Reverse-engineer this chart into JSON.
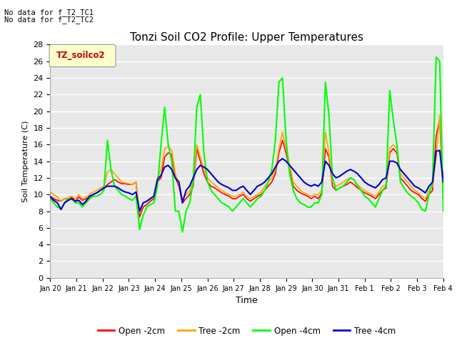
{
  "title": "Tonzi Soil CO2 Profile: Upper Temperatures",
  "xlabel": "Time",
  "ylabel": "Soil Temperature (C)",
  "note1": "No data for f_T2_TC1",
  "note2": "No data for f_T2_TC2",
  "legend_label": "TZ_soilco2",
  "ylim": [
    0,
    28
  ],
  "yticks": [
    0,
    2,
    4,
    6,
    8,
    10,
    12,
    14,
    16,
    18,
    20,
    22,
    24,
    26,
    28
  ],
  "xtick_labels": [
    "Jan 20",
    "Jan 21",
    "Jan 22",
    "Jan 23",
    "Jan 24",
    "Jan 25",
    "Jan 26",
    "Jan 27",
    "Jan 28",
    "Jan 29",
    "Jan 30",
    "Jan 31",
    "Feb 1",
    "Feb 2",
    "Feb 3",
    "Feb 4"
  ],
  "colors": {
    "open_2cm": "#FF0000",
    "tree_2cm": "#FFA500",
    "open_4cm": "#00FF00",
    "tree_4cm": "#0000CC"
  },
  "series_labels": [
    "Open -2cm",
    "Tree -2cm",
    "Open -4cm",
    "Tree -4cm"
  ],
  "open_2cm": [
    9.8,
    9.5,
    9.3,
    9.2,
    9.5,
    9.5,
    9.7,
    9.2,
    9.7,
    9.3,
    9.5,
    9.7,
    10.0,
    10.2,
    10.5,
    10.7,
    11.2,
    11.5,
    11.8,
    11.5,
    11.3,
    11.3,
    11.2,
    11.2,
    11.5,
    7.3,
    8.5,
    8.8,
    9.2,
    9.5,
    11.5,
    12.0,
    14.5,
    15.0,
    14.8,
    12.0,
    11.0,
    9.0,
    9.5,
    10.0,
    11.0,
    15.5,
    14.0,
    12.5,
    11.5,
    11.0,
    10.8,
    10.5,
    10.2,
    10.0,
    9.8,
    9.5,
    9.5,
    9.8,
    10.0,
    9.5,
    9.2,
    9.5,
    9.8,
    10.0,
    10.5,
    11.0,
    11.5,
    12.5,
    15.0,
    16.5,
    15.0,
    13.0,
    11.0,
    10.5,
    10.2,
    10.0,
    9.8,
    9.5,
    9.8,
    9.5,
    10.2,
    15.5,
    14.5,
    11.0,
    10.5,
    10.8,
    11.0,
    11.2,
    11.5,
    11.2,
    10.8,
    10.5,
    10.2,
    10.0,
    9.8,
    9.5,
    10.0,
    10.5,
    10.8,
    15.0,
    15.5,
    15.0,
    12.0,
    11.5,
    11.0,
    10.5,
    10.2,
    10.0,
    9.5,
    9.2,
    10.0,
    10.5,
    17.0,
    19.0,
    10.0
  ],
  "tree_2cm": [
    10.3,
    10.0,
    9.7,
    9.2,
    9.5,
    9.6,
    9.8,
    9.5,
    10.0,
    9.5,
    9.7,
    10.0,
    10.3,
    10.5,
    10.8,
    11.0,
    12.7,
    13.0,
    12.5,
    12.0,
    11.5,
    11.4,
    11.3,
    11.2,
    11.5,
    7.8,
    9.0,
    9.2,
    9.5,
    9.8,
    12.0,
    13.0,
    15.5,
    15.8,
    15.3,
    12.5,
    11.2,
    9.5,
    10.0,
    10.5,
    11.5,
    16.0,
    14.5,
    13.0,
    12.0,
    11.5,
    11.2,
    10.8,
    10.5,
    10.2,
    10.0,
    9.8,
    9.8,
    10.0,
    10.3,
    9.8,
    9.5,
    9.8,
    10.0,
    10.3,
    11.0,
    11.5,
    12.0,
    13.0,
    15.5,
    17.5,
    15.5,
    13.5,
    11.5,
    11.0,
    10.5,
    10.2,
    10.0,
    9.8,
    10.0,
    10.0,
    10.5,
    17.5,
    15.0,
    11.5,
    11.0,
    11.2,
    11.5,
    11.8,
    12.0,
    11.8,
    11.2,
    10.8,
    10.5,
    10.2,
    10.0,
    9.8,
    10.3,
    11.0,
    11.2,
    15.5,
    16.0,
    15.5,
    12.5,
    12.0,
    11.5,
    11.0,
    10.5,
    10.2,
    9.8,
    9.5,
    10.5,
    11.0,
    14.5,
    19.5,
    10.5
  ],
  "open_4cm": [
    9.5,
    9.0,
    8.5,
    8.3,
    9.0,
    9.5,
    9.5,
    9.0,
    9.0,
    8.5,
    9.0,
    9.5,
    9.8,
    9.8,
    10.0,
    10.5,
    16.5,
    13.0,
    11.0,
    10.5,
    10.0,
    9.8,
    9.5,
    9.3,
    9.8,
    5.8,
    7.5,
    8.5,
    8.8,
    9.0,
    11.0,
    16.0,
    20.5,
    16.0,
    14.0,
    8.0,
    8.0,
    5.5,
    8.0,
    9.0,
    11.5,
    20.5,
    22.0,
    15.0,
    11.5,
    10.5,
    10.0,
    9.5,
    9.0,
    8.8,
    8.5,
    8.0,
    8.5,
    9.0,
    9.5,
    9.0,
    8.5,
    9.0,
    9.5,
    9.8,
    10.5,
    11.5,
    13.0,
    16.5,
    23.5,
    24.0,
    16.5,
    12.5,
    10.5,
    9.5,
    9.0,
    8.8,
    8.5,
    8.5,
    9.0,
    9.0,
    10.0,
    23.5,
    19.5,
    12.0,
    10.5,
    10.8,
    11.0,
    11.5,
    12.0,
    11.8,
    11.0,
    10.5,
    9.8,
    9.5,
    9.0,
    8.5,
    9.5,
    10.5,
    11.0,
    22.5,
    19.0,
    16.0,
    11.5,
    10.8,
    10.2,
    9.8,
    9.5,
    9.0,
    8.2,
    8.0,
    10.0,
    11.5,
    26.5,
    26.0,
    8.0
  ],
  "tree_4cm": [
    9.7,
    9.3,
    9.0,
    8.2,
    9.0,
    9.3,
    9.5,
    9.2,
    9.3,
    8.8,
    9.2,
    9.8,
    10.0,
    10.2,
    10.5,
    10.8,
    11.0,
    11.0,
    11.0,
    10.8,
    10.5,
    10.3,
    10.2,
    10.0,
    10.3,
    8.0,
    9.0,
    9.2,
    9.5,
    9.8,
    11.8,
    12.3,
    13.3,
    13.5,
    13.0,
    12.0,
    11.5,
    9.0,
    10.5,
    11.0,
    12.0,
    13.0,
    13.5,
    13.3,
    13.0,
    12.5,
    12.0,
    11.5,
    11.2,
    11.0,
    10.8,
    10.5,
    10.5,
    10.8,
    11.0,
    10.5,
    10.0,
    10.5,
    11.0,
    11.2,
    11.5,
    12.0,
    12.5,
    13.3,
    14.0,
    14.3,
    14.0,
    13.5,
    13.0,
    12.5,
    12.0,
    11.5,
    11.2,
    11.0,
    11.2,
    11.0,
    11.5,
    14.0,
    13.5,
    12.5,
    12.0,
    12.2,
    12.5,
    12.8,
    13.0,
    12.8,
    12.5,
    12.0,
    11.5,
    11.2,
    11.0,
    10.8,
    11.2,
    11.8,
    12.0,
    14.0,
    14.0,
    13.8,
    13.0,
    12.5,
    12.0,
    11.5,
    11.0,
    10.8,
    10.5,
    10.2,
    11.0,
    11.5,
    15.2,
    15.3,
    11.5
  ]
}
